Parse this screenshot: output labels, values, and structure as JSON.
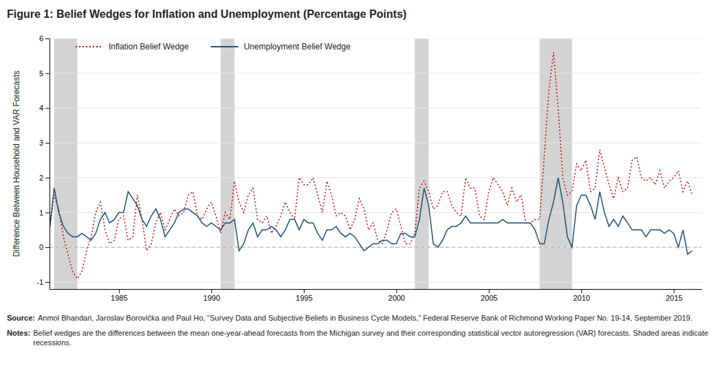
{
  "chart_data": {
    "type": "line",
    "title": "Figure 1: Belief Wedges for Inflation and Unemployment (Percentage Points)",
    "ylabel": "Difference Between Household and VAR Forecasts",
    "source": {
      "label": "Source:",
      "text": " Anmol Bhandari, Jaroslav Borovička and Paul Ho, “Survey Data and Subjective Beliefs in Business Cycle Models,” Federal Reserve Bank of Richmond Working Paper No. 19-14, September 2019."
    },
    "notes": {
      "label": "Notes:",
      "text": " Belief wedges are the differences between the mean one-year-ahead forecasts from the Michigan survey and their corresponding statistical vector autoregression (VAR) forecasts. Shaded areas indicate recessions."
    },
    "xlim": [
      1981.25,
      2016.5
    ],
    "ylim": [
      -1.2,
      6.0
    ],
    "xticks": [
      1985,
      1990,
      1995,
      2000,
      2005,
      2010,
      2015
    ],
    "yticks": [
      -1,
      0,
      1,
      2,
      3,
      4,
      5,
      6
    ],
    "grid": true,
    "legend": "upper left",
    "recessions": {
      "color": "#d3d3d3",
      "periods": [
        [
          1981.5,
          1982.75
        ],
        [
          1990.5,
          1991.25
        ],
        [
          2001.0,
          2001.75
        ],
        [
          2007.75,
          2009.5
        ]
      ]
    },
    "reference_lines": [
      {
        "y": 0,
        "color": "#aaaaaa",
        "line_style": "dashed"
      }
    ],
    "x": [
      1981.25,
      1981.5,
      1981.75,
      1982.0,
      1982.25,
      1982.5,
      1982.75,
      1983.0,
      1983.25,
      1983.5,
      1983.75,
      1984.0,
      1984.25,
      1984.5,
      1984.75,
      1985.0,
      1985.25,
      1985.5,
      1985.75,
      1986.0,
      1986.25,
      1986.5,
      1986.75,
      1987.0,
      1987.25,
      1987.5,
      1987.75,
      1988.0,
      1988.25,
      1988.5,
      1988.75,
      1989.0,
      1989.25,
      1989.5,
      1989.75,
      1990.0,
      1990.25,
      1990.5,
      1990.75,
      1991.0,
      1991.25,
      1991.5,
      1991.75,
      1992.0,
      1992.25,
      1992.5,
      1992.75,
      1993.0,
      1993.25,
      1993.5,
      1993.75,
      1994.0,
      1994.25,
      1994.5,
      1994.75,
      1995.0,
      1995.25,
      1995.5,
      1995.75,
      1996.0,
      1996.25,
      1996.5,
      1996.75,
      1997.0,
      1997.25,
      1997.5,
      1997.75,
      1998.0,
      1998.25,
      1998.5,
      1998.75,
      1999.0,
      1999.25,
      1999.5,
      1999.75,
      2000.0,
      2000.25,
      2000.5,
      2000.75,
      2001.0,
      2001.25,
      2001.5,
      2001.75,
      2002.0,
      2002.25,
      2002.5,
      2002.75,
      2003.0,
      2003.25,
      2003.5,
      2003.75,
      2004.0,
      2004.25,
      2004.5,
      2004.75,
      2005.0,
      2005.25,
      2005.5,
      2005.75,
      2006.0,
      2006.25,
      2006.5,
      2006.75,
      2007.0,
      2007.25,
      2007.5,
      2007.75,
      2008.0,
      2008.25,
      2008.5,
      2008.75,
      2009.0,
      2009.25,
      2009.5,
      2009.75,
      2010.0,
      2010.25,
      2010.5,
      2010.75,
      2011.0,
      2011.25,
      2011.5,
      2011.75,
      2012.0,
      2012.25,
      2012.5,
      2012.75,
      2013.0,
      2013.25,
      2013.5,
      2013.75,
      2014.0,
      2014.25,
      2014.5,
      2014.75,
      2015.0,
      2015.25,
      2015.5,
      2015.75,
      2016.0
    ],
    "series": [
      {
        "name": "Inflation Belief Wedge",
        "color": "#cc0000",
        "line_style": "dotted",
        "values": [
          0.5,
          1.5,
          1.1,
          0.3,
          -0.2,
          -0.7,
          -0.9,
          -0.7,
          -0.1,
          0.3,
          1.0,
          1.3,
          0.5,
          0.1,
          0.2,
          0.8,
          0.9,
          0.2,
          0.3,
          1.5,
          0.8,
          -0.1,
          0.1,
          0.7,
          1.0,
          0.5,
          0.8,
          1.1,
          0.9,
          1.0,
          1.5,
          1.6,
          0.9,
          0.8,
          1.1,
          1.3,
          0.9,
          0.4,
          1.0,
          0.8,
          1.9,
          1.3,
          1.0,
          1.5,
          1.7,
          0.8,
          0.7,
          0.9,
          0.4,
          0.6,
          0.9,
          1.3,
          1.0,
          0.8,
          2.0,
          1.8,
          1.8,
          2.0,
          1.5,
          1.0,
          1.9,
          1.5,
          0.9,
          1.0,
          0.9,
          0.5,
          0.8,
          1.4,
          1.1,
          0.5,
          0.7,
          0.2,
          0.1,
          0.5,
          1.0,
          1.1,
          0.6,
          0.1,
          0.1,
          0.4,
          1.7,
          1.9,
          1.6,
          1.1,
          1.2,
          1.6,
          1.6,
          1.2,
          1.0,
          0.9,
          2.0,
          1.7,
          1.7,
          0.9,
          0.8,
          1.6,
          2.0,
          1.8,
          1.6,
          1.2,
          1.7,
          1.3,
          1.5,
          0.7,
          0.7,
          0.8,
          0.8,
          2.6,
          4.5,
          5.6,
          4.0,
          2.0,
          1.5,
          1.6,
          2.4,
          2.2,
          2.5,
          1.6,
          1.7,
          2.8,
          2.3,
          1.8,
          1.4,
          2.0,
          1.6,
          1.7,
          2.5,
          2.6,
          2.0,
          1.9,
          2.0,
          1.8,
          2.2,
          1.7,
          1.9,
          2.0,
          2.2,
          1.6,
          1.9,
          1.5
        ]
      },
      {
        "name": "Unemployment Belief Wedge",
        "color": "#1a4f7a",
        "line_style": "solid",
        "values": [
          0.5,
          1.7,
          1.0,
          0.6,
          0.4,
          0.3,
          0.3,
          0.4,
          0.3,
          0.2,
          0.4,
          0.8,
          1.0,
          0.7,
          0.8,
          1.0,
          1.0,
          1.6,
          1.4,
          1.2,
          0.8,
          0.6,
          0.9,
          1.1,
          0.8,
          0.3,
          0.5,
          0.7,
          1.0,
          1.1,
          1.1,
          1.0,
          0.9,
          0.7,
          0.6,
          0.7,
          0.6,
          0.5,
          0.7,
          0.7,
          0.8,
          -0.1,
          0.1,
          0.5,
          0.7,
          0.3,
          0.5,
          0.5,
          0.6,
          0.5,
          0.3,
          0.5,
          0.8,
          0.8,
          0.5,
          0.8,
          0.7,
          0.7,
          0.4,
          0.2,
          0.5,
          0.5,
          0.6,
          0.4,
          0.3,
          0.4,
          0.3,
          0.1,
          -0.1,
          0.0,
          0.1,
          0.1,
          0.2,
          0.2,
          0.1,
          0.1,
          0.4,
          0.4,
          0.3,
          0.3,
          0.8,
          1.7,
          1.2,
          0.1,
          0.0,
          0.2,
          0.5,
          0.6,
          0.6,
          0.7,
          0.9,
          0.7,
          0.7,
          0.7,
          0.7,
          0.7,
          0.7,
          0.7,
          0.8,
          0.7,
          0.7,
          0.7,
          0.7,
          0.7,
          0.7,
          0.5,
          0.1,
          0.1,
          0.8,
          1.3,
          2.0,
          1.3,
          0.3,
          0.0,
          1.2,
          1.5,
          1.5,
          1.2,
          0.8,
          1.6,
          1.0,
          0.6,
          0.8,
          0.6,
          0.9,
          0.7,
          0.5,
          0.5,
          0.5,
          0.3,
          0.5,
          0.5,
          0.5,
          0.4,
          0.5,
          0.4,
          0.0,
          0.5,
          -0.2,
          -0.1
        ]
      }
    ]
  }
}
